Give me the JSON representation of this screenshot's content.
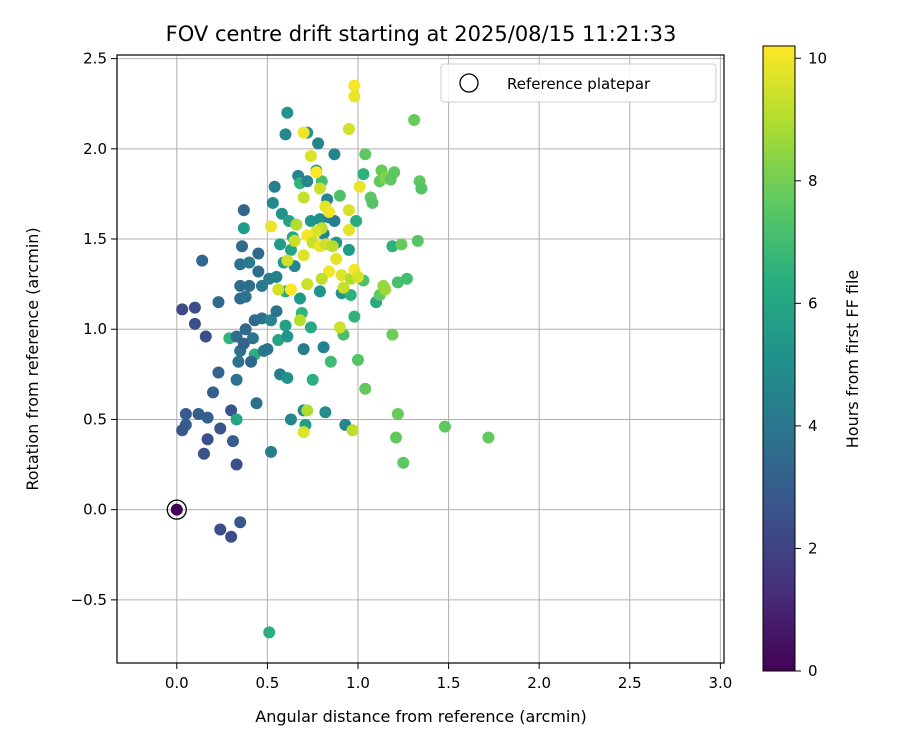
{
  "chart_data": {
    "type": "scatter",
    "title": "FOV centre drift starting at 2025/08/15 11:21:33",
    "xlabel": "Angular distance from reference (arcmin)",
    "ylabel": "Rotation from reference (arcmin)",
    "xlim": [
      -0.33,
      3.02
    ],
    "ylim": [
      -0.85,
      2.52
    ],
    "xticks": [
      0.0,
      0.5,
      1.0,
      1.5,
      2.0,
      2.5,
      3.0
    ],
    "xtick_labels": [
      "0.0",
      "0.5",
      "1.0",
      "1.5",
      "2.0",
      "2.5",
      "3.0"
    ],
    "yticks": [
      -0.5,
      0.0,
      0.5,
      1.0,
      1.5,
      2.0,
      2.5
    ],
    "ytick_labels": [
      "−0.5",
      "0.0",
      "0.5",
      "1.0",
      "1.5",
      "2.0",
      "2.5"
    ],
    "grid": true,
    "legend": {
      "placement": "top-right",
      "entries": [
        "Reference platepar"
      ]
    },
    "colorbar": {
      "label": "Hours from first FF file",
      "colormap": "viridis",
      "range": [
        0,
        10.2
      ],
      "ticks": [
        0,
        2,
        4,
        6,
        8,
        10
      ],
      "tick_labels": [
        "0",
        "2",
        "4",
        "6",
        "8",
        "10"
      ]
    },
    "reference_point": {
      "x": 0.0,
      "y": 0.0,
      "c": 0.0
    },
    "points": [
      {
        "x": 0.03,
        "y": 1.11,
        "c": 2.2
      },
      {
        "x": 0.1,
        "y": 1.12,
        "c": 2.3
      },
      {
        "x": 0.1,
        "y": 1.03,
        "c": 2.4
      },
      {
        "x": 0.16,
        "y": 0.96,
        "c": 2.5
      },
      {
        "x": 0.14,
        "y": 1.38,
        "c": 3.4
      },
      {
        "x": 0.23,
        "y": 1.15,
        "c": 3.5
      },
      {
        "x": 0.23,
        "y": 0.76,
        "c": 3.2
      },
      {
        "x": 0.2,
        "y": 0.65,
        "c": 3.1
      },
      {
        "x": 0.05,
        "y": 0.53,
        "c": 2.9
      },
      {
        "x": 0.05,
        "y": 0.47,
        "c": 3.0
      },
      {
        "x": 0.03,
        "y": 0.44,
        "c": 2.8
      },
      {
        "x": 0.12,
        "y": 0.53,
        "c": 3.0
      },
      {
        "x": 0.17,
        "y": 0.51,
        "c": 3.1
      },
      {
        "x": 0.15,
        "y": 0.31,
        "c": 2.6
      },
      {
        "x": 0.17,
        "y": 0.39,
        "c": 2.5
      },
      {
        "x": 0.24,
        "y": 0.45,
        "c": 2.6
      },
      {
        "x": 0.3,
        "y": 0.55,
        "c": 2.7
      },
      {
        "x": 0.31,
        "y": 0.38,
        "c": 3.0
      },
      {
        "x": 0.33,
        "y": 0.25,
        "c": 2.5
      },
      {
        "x": 0.24,
        "y": -0.11,
        "c": 2.4
      },
      {
        "x": 0.3,
        "y": -0.15,
        "c": 2.3
      },
      {
        "x": 0.35,
        "y": -0.07,
        "c": 2.8
      },
      {
        "x": 0.33,
        "y": 0.5,
        "c": 6.0
      },
      {
        "x": 0.29,
        "y": 0.95,
        "c": 6.6
      },
      {
        "x": 0.33,
        "y": 0.96,
        "c": 3.6
      },
      {
        "x": 0.35,
        "y": 1.36,
        "c": 3.8
      },
      {
        "x": 0.37,
        "y": 1.66,
        "c": 3.3
      },
      {
        "x": 0.37,
        "y": 1.56,
        "c": 5.6
      },
      {
        "x": 0.36,
        "y": 1.46,
        "c": 3.5
      },
      {
        "x": 0.35,
        "y": 1.24,
        "c": 3.6
      },
      {
        "x": 0.38,
        "y": 1.0,
        "c": 3.4
      },
      {
        "x": 0.35,
        "y": 0.88,
        "c": 3.7
      },
      {
        "x": 0.34,
        "y": 0.82,
        "c": 3.9
      },
      {
        "x": 0.33,
        "y": 0.72,
        "c": 3.8
      },
      {
        "x": 0.37,
        "y": 0.92,
        "c": 3.2
      },
      {
        "x": 0.4,
        "y": 1.37,
        "c": 4.2
      },
      {
        "x": 0.4,
        "y": 1.24,
        "c": 3.6
      },
      {
        "x": 0.35,
        "y": 1.17,
        "c": 3.5
      },
      {
        "x": 0.38,
        "y": 1.18,
        "c": 3.9
      },
      {
        "x": 0.43,
        "y": 1.05,
        "c": 3.5
      },
      {
        "x": 0.42,
        "y": 0.95,
        "c": 3.9
      },
      {
        "x": 0.43,
        "y": 0.86,
        "c": 6.4
      },
      {
        "x": 0.41,
        "y": 0.82,
        "c": 3.4
      },
      {
        "x": 0.44,
        "y": 0.59,
        "c": 3.7
      },
      {
        "x": 0.45,
        "y": 1.42,
        "c": 3.5
      },
      {
        "x": 0.45,
        "y": 1.32,
        "c": 3.6
      },
      {
        "x": 0.47,
        "y": 1.24,
        "c": 4.2
      },
      {
        "x": 0.47,
        "y": 1.06,
        "c": 3.8
      },
      {
        "x": 0.48,
        "y": 0.88,
        "c": 4.1
      },
      {
        "x": 0.5,
        "y": 0.89,
        "c": 4.0
      },
      {
        "x": 0.51,
        "y": 1.28,
        "c": 4.3
      },
      {
        "x": 0.52,
        "y": 1.05,
        "c": 4.6
      },
      {
        "x": 0.53,
        "y": 1.7,
        "c": 4.8
      },
      {
        "x": 0.54,
        "y": 1.79,
        "c": 4.4
      },
      {
        "x": 0.55,
        "y": 1.29,
        "c": 4.5
      },
      {
        "x": 0.55,
        "y": 1.1,
        "c": 3.9
      },
      {
        "x": 0.56,
        "y": 0.94,
        "c": 6.0
      },
      {
        "x": 0.57,
        "y": 0.75,
        "c": 4.3
      },
      {
        "x": 0.58,
        "y": 1.64,
        "c": 5.2
      },
      {
        "x": 0.57,
        "y": 1.47,
        "c": 5.6
      },
      {
        "x": 0.59,
        "y": 1.37,
        "c": 5.5
      },
      {
        "x": 0.6,
        "y": 1.21,
        "c": 6.3
      },
      {
        "x": 0.6,
        "y": 1.02,
        "c": 5.8
      },
      {
        "x": 0.61,
        "y": 0.96,
        "c": 5.3
      },
      {
        "x": 0.61,
        "y": 0.73,
        "c": 5.2
      },
      {
        "x": 0.63,
        "y": 0.5,
        "c": 4.6
      },
      {
        "x": 0.52,
        "y": 0.32,
        "c": 4.4
      },
      {
        "x": 0.51,
        "y": -0.68,
        "c": 6.4
      },
      {
        "x": 0.61,
        "y": 2.2,
        "c": 5.2
      },
      {
        "x": 0.6,
        "y": 2.08,
        "c": 4.8
      },
      {
        "x": 0.62,
        "y": 1.6,
        "c": 5.8
      },
      {
        "x": 0.64,
        "y": 1.51,
        "c": 6.1
      },
      {
        "x": 0.63,
        "y": 1.44,
        "c": 5.9
      },
      {
        "x": 0.65,
        "y": 1.35,
        "c": 4.8
      },
      {
        "x": 0.67,
        "y": 1.85,
        "c": 4.6
      },
      {
        "x": 0.68,
        "y": 1.81,
        "c": 6.7
      },
      {
        "x": 0.68,
        "y": 1.17,
        "c": 5.6
      },
      {
        "x": 0.69,
        "y": 1.09,
        "c": 6.6
      },
      {
        "x": 0.7,
        "y": 0.89,
        "c": 4.4
      },
      {
        "x": 0.71,
        "y": 0.47,
        "c": 5.7
      },
      {
        "x": 0.7,
        "y": 0.55,
        "c": 4.8
      },
      {
        "x": 0.72,
        "y": 2.09,
        "c": 5.3
      },
      {
        "x": 0.72,
        "y": 1.82,
        "c": 4.7
      },
      {
        "x": 0.74,
        "y": 1.6,
        "c": 5.4
      },
      {
        "x": 0.74,
        "y": 1.01,
        "c": 6.1
      },
      {
        "x": 0.75,
        "y": 0.72,
        "c": 6.4
      },
      {
        "x": 0.77,
        "y": 1.88,
        "c": 5.8
      },
      {
        "x": 0.78,
        "y": 2.03,
        "c": 4.6
      },
      {
        "x": 0.79,
        "y": 1.61,
        "c": 5.2
      },
      {
        "x": 0.79,
        "y": 1.21,
        "c": 5.3
      },
      {
        "x": 0.8,
        "y": 1.82,
        "c": 7.1
      },
      {
        "x": 0.81,
        "y": 1.53,
        "c": 4.5
      },
      {
        "x": 0.81,
        "y": 0.9,
        "c": 4.5
      },
      {
        "x": 0.82,
        "y": 0.54,
        "c": 5.0
      },
      {
        "x": 0.83,
        "y": 1.72,
        "c": 4.7
      },
      {
        "x": 0.84,
        "y": 1.62,
        "c": 4.5
      },
      {
        "x": 0.85,
        "y": 0.82,
        "c": 7.0
      },
      {
        "x": 0.87,
        "y": 1.97,
        "c": 4.6
      },
      {
        "x": 0.88,
        "y": 1.48,
        "c": 5.4
      },
      {
        "x": 0.87,
        "y": 1.6,
        "c": 4.4
      },
      {
        "x": 0.9,
        "y": 1.74,
        "c": 7.3
      },
      {
        "x": 0.91,
        "y": 1.2,
        "c": 5.2
      },
      {
        "x": 0.92,
        "y": 0.97,
        "c": 7.2
      },
      {
        "x": 0.93,
        "y": 0.47,
        "c": 4.7
      },
      {
        "x": 0.95,
        "y": 1.44,
        "c": 5.6
      },
      {
        "x": 0.96,
        "y": 1.19,
        "c": 6.5
      },
      {
        "x": 0.98,
        "y": 1.07,
        "c": 6.6
      },
      {
        "x": 0.99,
        "y": 1.6,
        "c": 6.2
      },
      {
        "x": 1.0,
        "y": 0.83,
        "c": 7.4
      },
      {
        "x": 1.03,
        "y": 1.86,
        "c": 6.5
      },
      {
        "x": 1.04,
        "y": 1.97,
        "c": 7.6
      },
      {
        "x": 1.03,
        "y": 1.27,
        "c": 7.3
      },
      {
        "x": 1.04,
        "y": 0.67,
        "c": 7.7
      },
      {
        "x": 1.07,
        "y": 1.73,
        "c": 7.6
      },
      {
        "x": 1.08,
        "y": 1.7,
        "c": 7.4
      },
      {
        "x": 1.1,
        "y": 1.15,
        "c": 6.2
      },
      {
        "x": 1.12,
        "y": 1.19,
        "c": 7.6
      },
      {
        "x": 1.12,
        "y": 1.82,
        "c": 7.7
      },
      {
        "x": 1.13,
        "y": 1.88,
        "c": 7.8
      },
      {
        "x": 1.15,
        "y": 1.84,
        "c": 8.2
      },
      {
        "x": 1.18,
        "y": 1.83,
        "c": 7.6
      },
      {
        "x": 1.19,
        "y": 1.46,
        "c": 6.5
      },
      {
        "x": 1.19,
        "y": 0.97,
        "c": 7.9
      },
      {
        "x": 1.2,
        "y": 1.87,
        "c": 7.6
      },
      {
        "x": 1.21,
        "y": 0.4,
        "c": 7.7
      },
      {
        "x": 1.22,
        "y": 1.26,
        "c": 7.2
      },
      {
        "x": 1.22,
        "y": 0.53,
        "c": 7.8
      },
      {
        "x": 1.24,
        "y": 1.47,
        "c": 7.8
      },
      {
        "x": 1.25,
        "y": 0.26,
        "c": 7.6
      },
      {
        "x": 1.27,
        "y": 1.28,
        "c": 7.1
      },
      {
        "x": 1.31,
        "y": 2.16,
        "c": 7.8
      },
      {
        "x": 1.33,
        "y": 1.49,
        "c": 7.5
      },
      {
        "x": 1.34,
        "y": 1.82,
        "c": 7.6
      },
      {
        "x": 1.35,
        "y": 1.78,
        "c": 7.4
      },
      {
        "x": 1.48,
        "y": 0.46,
        "c": 7.6
      },
      {
        "x": 1.72,
        "y": 0.4,
        "c": 7.7
      },
      {
        "x": 1.15,
        "y": 1.22,
        "c": 8.7
      },
      {
        "x": 1.14,
        "y": 1.24,
        "c": 8.6
      },
      {
        "x": 0.98,
        "y": 2.35,
        "c": 10.1
      },
      {
        "x": 0.98,
        "y": 2.29,
        "c": 9.9
      },
      {
        "x": 0.95,
        "y": 2.11,
        "c": 9.5
      },
      {
        "x": 0.7,
        "y": 2.09,
        "c": 10.0
      },
      {
        "x": 0.74,
        "y": 1.96,
        "c": 9.7
      },
      {
        "x": 0.77,
        "y": 1.87,
        "c": 10.2
      },
      {
        "x": 0.79,
        "y": 1.78,
        "c": 9.4
      },
      {
        "x": 0.7,
        "y": 1.73,
        "c": 9.3
      },
      {
        "x": 0.82,
        "y": 1.68,
        "c": 9.8
      },
      {
        "x": 0.84,
        "y": 1.65,
        "c": 10.0
      },
      {
        "x": 0.8,
        "y": 1.56,
        "c": 9.2
      },
      {
        "x": 0.77,
        "y": 1.54,
        "c": 9.6
      },
      {
        "x": 0.72,
        "y": 1.52,
        "c": 10.1
      },
      {
        "x": 0.66,
        "y": 1.58,
        "c": 9.0
      },
      {
        "x": 0.65,
        "y": 1.49,
        "c": 9.4
      },
      {
        "x": 0.7,
        "y": 1.41,
        "c": 9.7
      },
      {
        "x": 0.75,
        "y": 1.48,
        "c": 9.3
      },
      {
        "x": 0.79,
        "y": 1.46,
        "c": 9.9
      },
      {
        "x": 0.82,
        "y": 1.47,
        "c": 9.5
      },
      {
        "x": 0.86,
        "y": 1.46,
        "c": 9.1
      },
      {
        "x": 0.88,
        "y": 1.39,
        "c": 9.8
      },
      {
        "x": 0.84,
        "y": 1.32,
        "c": 10.0
      },
      {
        "x": 0.8,
        "y": 1.28,
        "c": 9.2
      },
      {
        "x": 0.72,
        "y": 1.25,
        "c": 9.4
      },
      {
        "x": 0.63,
        "y": 1.22,
        "c": 10.2
      },
      {
        "x": 0.56,
        "y": 1.22,
        "c": 9.5
      },
      {
        "x": 0.52,
        "y": 1.57,
        "c": 9.9
      },
      {
        "x": 0.91,
        "y": 1.3,
        "c": 9.7
      },
      {
        "x": 0.92,
        "y": 1.23,
        "c": 9.3
      },
      {
        "x": 0.96,
        "y": 1.28,
        "c": 9.0
      },
      {
        "x": 0.98,
        "y": 1.33,
        "c": 10.1
      },
      {
        "x": 1.0,
        "y": 1.29,
        "c": 9.6
      },
      {
        "x": 0.95,
        "y": 1.55,
        "c": 9.8
      },
      {
        "x": 0.95,
        "y": 1.66,
        "c": 9.6
      },
      {
        "x": 1.01,
        "y": 1.79,
        "c": 9.9
      },
      {
        "x": 0.9,
        "y": 1.01,
        "c": 9.4
      },
      {
        "x": 0.7,
        "y": 0.43,
        "c": 9.7
      },
      {
        "x": 0.97,
        "y": 0.44,
        "c": 9.2
      },
      {
        "x": 0.72,
        "y": 0.55,
        "c": 9.0
      },
      {
        "x": 0.61,
        "y": 1.38,
        "c": 9.5
      },
      {
        "x": 0.68,
        "y": 1.05,
        "c": 9.1
      }
    ]
  }
}
